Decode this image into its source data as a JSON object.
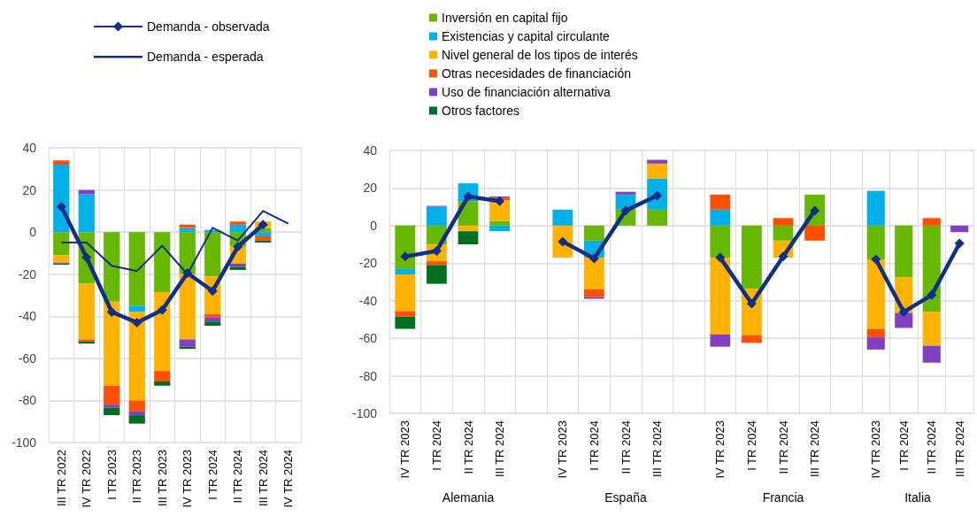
{
  "chart_data": [
    {
      "type": "bar",
      "stacked": true,
      "legend": "top",
      "grid": true,
      "ylim": [
        -100,
        40
      ],
      "yticks": [
        -100,
        -80,
        -60,
        -40,
        -20,
        0,
        20,
        40
      ],
      "categories": [
        "III TR 2022",
        "IV TR 2022",
        "I TR 2023",
        "II TR 2023",
        "III TR 2023",
        "IV TR 2023",
        "I TR 2024",
        "II TR 2024",
        "III TR 2024",
        "IV TR 2024"
      ],
      "series": [
        {
          "name": "Inversión en capital fijo",
          "color": "#66b800",
          "values": [
            -11,
            -24.5,
            -33,
            -35,
            -28.5,
            -20,
            -21,
            -7,
            2,
            null
          ]
        },
        {
          "name": "Existencias y capital circulante",
          "color": "#00b0e8",
          "values": [
            32,
            18,
            null,
            -3,
            null,
            2,
            1,
            3.5,
            -2,
            null
          ]
        },
        {
          "name": "Nivel general de los tipos de interés",
          "color": "#ffb300",
          "values": [
            -3.5,
            -26.5,
            -40,
            -42,
            -37.5,
            -31,
            -18,
            -8,
            3,
            null
          ]
        },
        {
          "name": "Otras necesidades de financiación",
          "color": "#ff4f00",
          "values": [
            2,
            -1,
            -9,
            -5,
            -5,
            1.5,
            -1.5,
            1.5,
            -2,
            null
          ]
        },
        {
          "name": "Uso de financiación alternativa",
          "color": "#8040c0",
          "values": [
            -0.5,
            2,
            -1.5,
            -2,
            null,
            -3.5,
            -2,
            -1.5,
            null,
            null
          ]
        },
        {
          "name": "Otros factores",
          "color": "#007020",
          "values": [
            -0.5,
            -1,
            -3.5,
            -4,
            -2,
            -1,
            -2,
            -1.5,
            -1,
            null
          ]
        },
        {
          "name": "Demanda - observada",
          "type": "line",
          "marker": "diamond",
          "color": "#0f2f8a",
          "values": [
            12,
            -12,
            -38,
            -43,
            -37,
            -19.5,
            -28,
            -7,
            3.5,
            null
          ]
        },
        {
          "name": "Demanda - esperada",
          "type": "line",
          "marker": "none",
          "color": "#0f2f8a",
          "values": [
            -5,
            -5,
            -16,
            -18.5,
            -6.5,
            -20,
            2,
            -4,
            10,
            4
          ]
        }
      ]
    },
    {
      "type": "bar",
      "stacked": true,
      "grid": true,
      "xlabel": "Alemania",
      "ylim": [
        -100,
        40
      ],
      "yticks": [
        -100,
        -80,
        -60,
        -40,
        -20,
        0,
        20,
        40
      ],
      "categories": [
        "IV TR 2023",
        "I TR 2024",
        "II TR 2024",
        "III TR 2024",
        null
      ],
      "series": [
        {
          "color": "#66b800",
          "values": [
            -23,
            -10,
            13,
            2.5,
            null
          ]
        },
        {
          "color": "#00b0e8",
          "values": [
            -3,
            10,
            9.5,
            -3,
            null
          ]
        },
        {
          "color": "#ffb300",
          "values": [
            -19.5,
            -9,
            -3,
            11,
            null
          ]
        },
        {
          "color": "#ff4f00",
          "values": [
            -3,
            -2,
            null,
            1.5,
            null
          ]
        },
        {
          "color": "#8040c0",
          "values": [
            null,
            0.5,
            null,
            0.5,
            null
          ]
        },
        {
          "color": "#007020",
          "values": [
            -6.5,
            -10,
            -7,
            null,
            null
          ]
        },
        {
          "type": "line",
          "marker": "diamond",
          "color": "#0f2f8a",
          "values": [
            -16.5,
            -13.5,
            15.5,
            13,
            null
          ]
        }
      ]
    },
    {
      "type": "bar",
      "stacked": true,
      "grid": true,
      "xlabel": "España",
      "tick_labels": "x",
      "ylim": [
        -100,
        40
      ],
      "yticks": [
        -100,
        -80,
        -60,
        -40,
        -20,
        0,
        20,
        40
      ],
      "categories": [
        "IV TR 2023",
        "I TR 2024",
        "II TR 2024",
        "III TR 2024",
        null
      ],
      "series": [
        {
          "color": "#66b800",
          "values": [
            null,
            -8,
            8.5,
            8.5,
            null
          ]
        },
        {
          "color": "#00b0e8",
          "values": [
            8.5,
            -9,
            8,
            16.5,
            null
          ]
        },
        {
          "color": "#ffb300",
          "values": [
            -17,
            -17,
            null,
            8,
            null
          ]
        },
        {
          "color": "#ff4f00",
          "values": [
            null,
            -4,
            null,
            null,
            null
          ]
        },
        {
          "color": "#8040c0",
          "values": [
            null,
            -1,
            1.5,
            2,
            null
          ]
        },
        {
          "type": "line",
          "marker": "diamond",
          "color": "#0f2f8a",
          "values": [
            -8.5,
            -17.5,
            8,
            16,
            null
          ]
        }
      ]
    },
    {
      "type": "bar",
      "stacked": true,
      "grid": true,
      "xlabel": "Francia",
      "tick_labels": "x",
      "ylim": [
        -100,
        40
      ],
      "yticks": [
        -100,
        -80,
        -60,
        -40,
        -20,
        0,
        20,
        40
      ],
      "categories": [
        "IV TR 2023",
        "I TR 2024",
        "II TR 2024",
        "III TR 2024",
        null
      ],
      "series": [
        {
          "color": "#66b800",
          "values": [
            -17,
            -33.5,
            -8,
            16.5,
            null
          ]
        },
        {
          "color": "#00b0e8",
          "values": [
            8.5,
            null,
            null,
            null,
            null
          ]
        },
        {
          "color": "#ffb300",
          "values": [
            -41,
            -25,
            -9,
            null,
            null
          ]
        },
        {
          "color": "#ff4f00",
          "values": [
            8,
            -4,
            4,
            -8,
            null
          ]
        },
        {
          "color": "#8040c0",
          "values": [
            -6.5,
            null,
            null,
            null,
            null
          ]
        },
        {
          "type": "line",
          "marker": "diamond",
          "color": "#0f2f8a",
          "values": [
            -17,
            -41.5,
            -16.5,
            8,
            null
          ]
        }
      ]
    },
    {
      "type": "bar",
      "stacked": true,
      "grid": true,
      "xlabel": "Italia",
      "tick_labels": "x",
      "ylim": [
        -100,
        40
      ],
      "yticks": [
        -100,
        -80,
        -60,
        -40,
        -20,
        0,
        20,
        40
      ],
      "categories": [
        "IV TR 2023",
        "I TR 2024",
        "II TR 2024",
        "III TR 2024"
      ],
      "series": [
        {
          "color": "#66b800",
          "values": [
            -18,
            -27.5,
            -46,
            null
          ]
        },
        {
          "color": "#00b0e8",
          "values": [
            18.5,
            null,
            null,
            null
          ]
        },
        {
          "color": "#ffb300",
          "values": [
            -37,
            -19,
            -18,
            null
          ]
        },
        {
          "color": "#ff4f00",
          "values": [
            -4.5,
            null,
            4,
            null
          ]
        },
        {
          "color": "#8040c0",
          "values": [
            -6.5,
            -8,
            -9,
            -3.5
          ]
        },
        {
          "type": "line",
          "marker": "diamond",
          "color": "#0f2f8a",
          "values": [
            -18,
            -46,
            -37,
            -9.5
          ]
        }
      ]
    }
  ]
}
